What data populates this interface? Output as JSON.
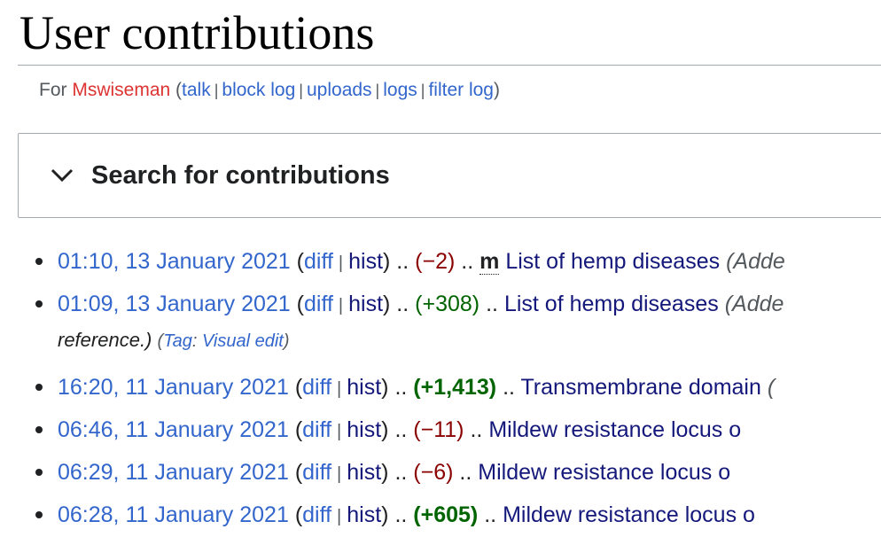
{
  "page": {
    "title": "User contributions"
  },
  "subtitle": {
    "prefix": "For ",
    "username": "Mswiseman",
    "open_paren": " (",
    "close_paren": ")",
    "links": [
      "talk",
      "block log",
      "uploads",
      "logs",
      "filter log"
    ],
    "separator": "|"
  },
  "search_panel": {
    "title": "Search for contributions",
    "icon": "chevron-down-icon"
  },
  "labels": {
    "diff": "diff",
    "hist": "hist",
    "pipe": "|",
    "dots": "..",
    "minor": "m"
  },
  "contributions": [
    {
      "timestamp": "01:10, 13 January 2021",
      "size_diff": "(−2)",
      "diff_type": "neg",
      "bold": false,
      "minor": true,
      "page": "List of hemp diseases",
      "comment": "(Adde"
    },
    {
      "timestamp": "01:09, 13 January 2021",
      "size_diff": "(+308)",
      "diff_type": "pos",
      "bold": false,
      "minor": false,
      "page": "List of hemp diseases",
      "comment": "(Adde"
    },
    {
      "timestamp": "16:20, 11 January 2021",
      "size_diff": "(+1,413)",
      "diff_type": "pos",
      "bold": true,
      "minor": false,
      "page": "Transmembrane domain",
      "comment": "("
    },
    {
      "timestamp": "06:46, 11 January 2021",
      "size_diff": "(−11)",
      "diff_type": "neg",
      "bold": false,
      "minor": false,
      "page": "Mildew resistance locus o",
      "comment": ""
    },
    {
      "timestamp": "06:29, 11 January 2021",
      "size_diff": "(−6)",
      "diff_type": "neg",
      "bold": false,
      "minor": false,
      "page": "Mildew resistance locus o",
      "comment": ""
    },
    {
      "timestamp": "06:28, 11 January 2021",
      "size_diff": "(+605)",
      "diff_type": "pos",
      "bold": true,
      "minor": false,
      "page": "Mildew resistance locus o",
      "comment": ""
    }
  ],
  "continuation": {
    "text": "reference.)",
    "tag_open": "(",
    "tag_label": "Tag",
    "tag_colon": ": ",
    "tag_value": "Visual edit",
    "tag_close": ")"
  }
}
